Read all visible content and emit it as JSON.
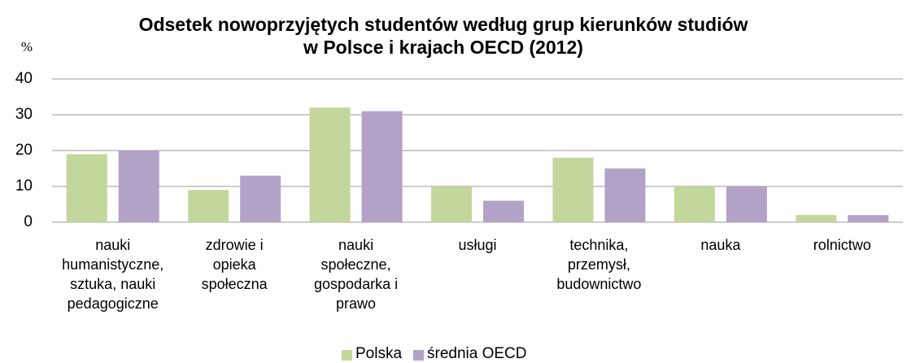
{
  "chart_data": {
    "type": "bar",
    "title": "Odsetek nowoprzyjętych studentów według grup kierunków studiów\nw Polsce i krajach OECD (2012)",
    "y_label": "%",
    "categories": [
      "nauki\nhumanistyczne,\nsztuka, nauki\npedagogiczne",
      "zdrowie i\nopieka\nspołeczna",
      "nauki\nspołeczne,\ngospodarka i\nprawo",
      "usługi",
      "technika,\nprzemysł,\nbudownictwo",
      "nauka",
      "rolnictwo"
    ],
    "series": [
      {
        "name": "Polska",
        "color": "#c3d69b",
        "values": [
          19,
          9,
          32,
          10,
          18,
          10,
          2
        ]
      },
      {
        "name": "średnia OECD",
        "color": "#b3a2c7",
        "values": [
          20,
          13,
          31,
          6,
          15,
          10,
          2
        ]
      }
    ],
    "ylim": [
      0,
      40
    ],
    "yticks": [
      0,
      10,
      20,
      30,
      40
    ],
    "grid": true,
    "legend": "bottom"
  }
}
